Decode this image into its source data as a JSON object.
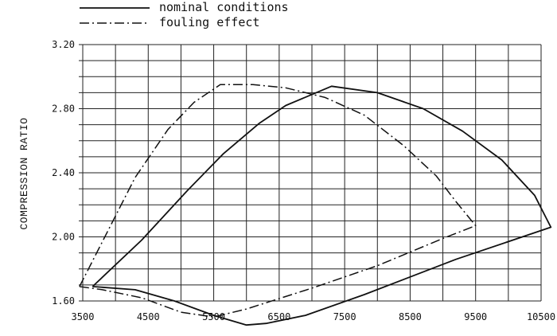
{
  "chart_data": {
    "type": "line",
    "xlabel": "",
    "ylabel": "COMPRESSION RATIO",
    "xlim": [
      3500,
      10500
    ],
    "ylim": [
      1.6,
      3.2
    ],
    "x_tick_step": 500,
    "y_tick_step": 0.1,
    "x_tick_labels": [
      {
        "value": 3500,
        "text": "3500"
      },
      {
        "value": 4500,
        "text": "4500"
      },
      {
        "value": 5500,
        "text": "5500"
      },
      {
        "value": 6500,
        "text": "6500"
      },
      {
        "value": 7500,
        "text": "7500"
      },
      {
        "value": 8500,
        "text": "8500"
      },
      {
        "value": 9500,
        "text": "9500"
      },
      {
        "value": 10500,
        "text": "10500"
      }
    ],
    "y_tick_labels": [
      {
        "value": 1.6,
        "text": "1.60"
      },
      {
        "value": 2.0,
        "text": "2.00"
      },
      {
        "value": 2.4,
        "text": "2.40"
      },
      {
        "value": 2.8,
        "text": "2.80"
      },
      {
        "value": 3.2,
        "text": "3.20"
      }
    ],
    "grid": true,
    "legend_placement": "top-left",
    "series": [
      {
        "name": "nominal conditions",
        "style": "solid",
        "color": "#111111",
        "x": [
          3650,
          4400,
          5100,
          5650,
          6200,
          6600,
          7300,
          8000,
          8700,
          9300,
          9900,
          10400,
          10650,
          9200,
          7800,
          6900,
          6300,
          6000,
          5500,
          4900,
          4300,
          3650
        ],
        "y": [
          1.69,
          1.98,
          2.29,
          2.52,
          2.71,
          2.82,
          2.94,
          2.9,
          2.8,
          2.66,
          2.48,
          2.26,
          2.06,
          1.86,
          1.64,
          1.51,
          1.46,
          1.45,
          1.51,
          1.6,
          1.67,
          1.69
        ]
      },
      {
        "name": "fouling effect",
        "style": "dash-dot",
        "color": "#111111",
        "x": [
          3450,
          3900,
          4300,
          4800,
          5200,
          5600,
          6100,
          6600,
          7200,
          7800,
          8400,
          8900,
          9200,
          9500,
          9000,
          8000,
          7000,
          6000,
          5500,
          5000,
          4400,
          3800,
          3450
        ],
        "y": [
          1.69,
          2.05,
          2.37,
          2.67,
          2.84,
          2.95,
          2.95,
          2.93,
          2.87,
          2.76,
          2.57,
          2.38,
          2.22,
          2.07,
          1.99,
          1.82,
          1.68,
          1.55,
          1.5,
          1.53,
          1.62,
          1.67,
          1.69
        ]
      }
    ]
  }
}
